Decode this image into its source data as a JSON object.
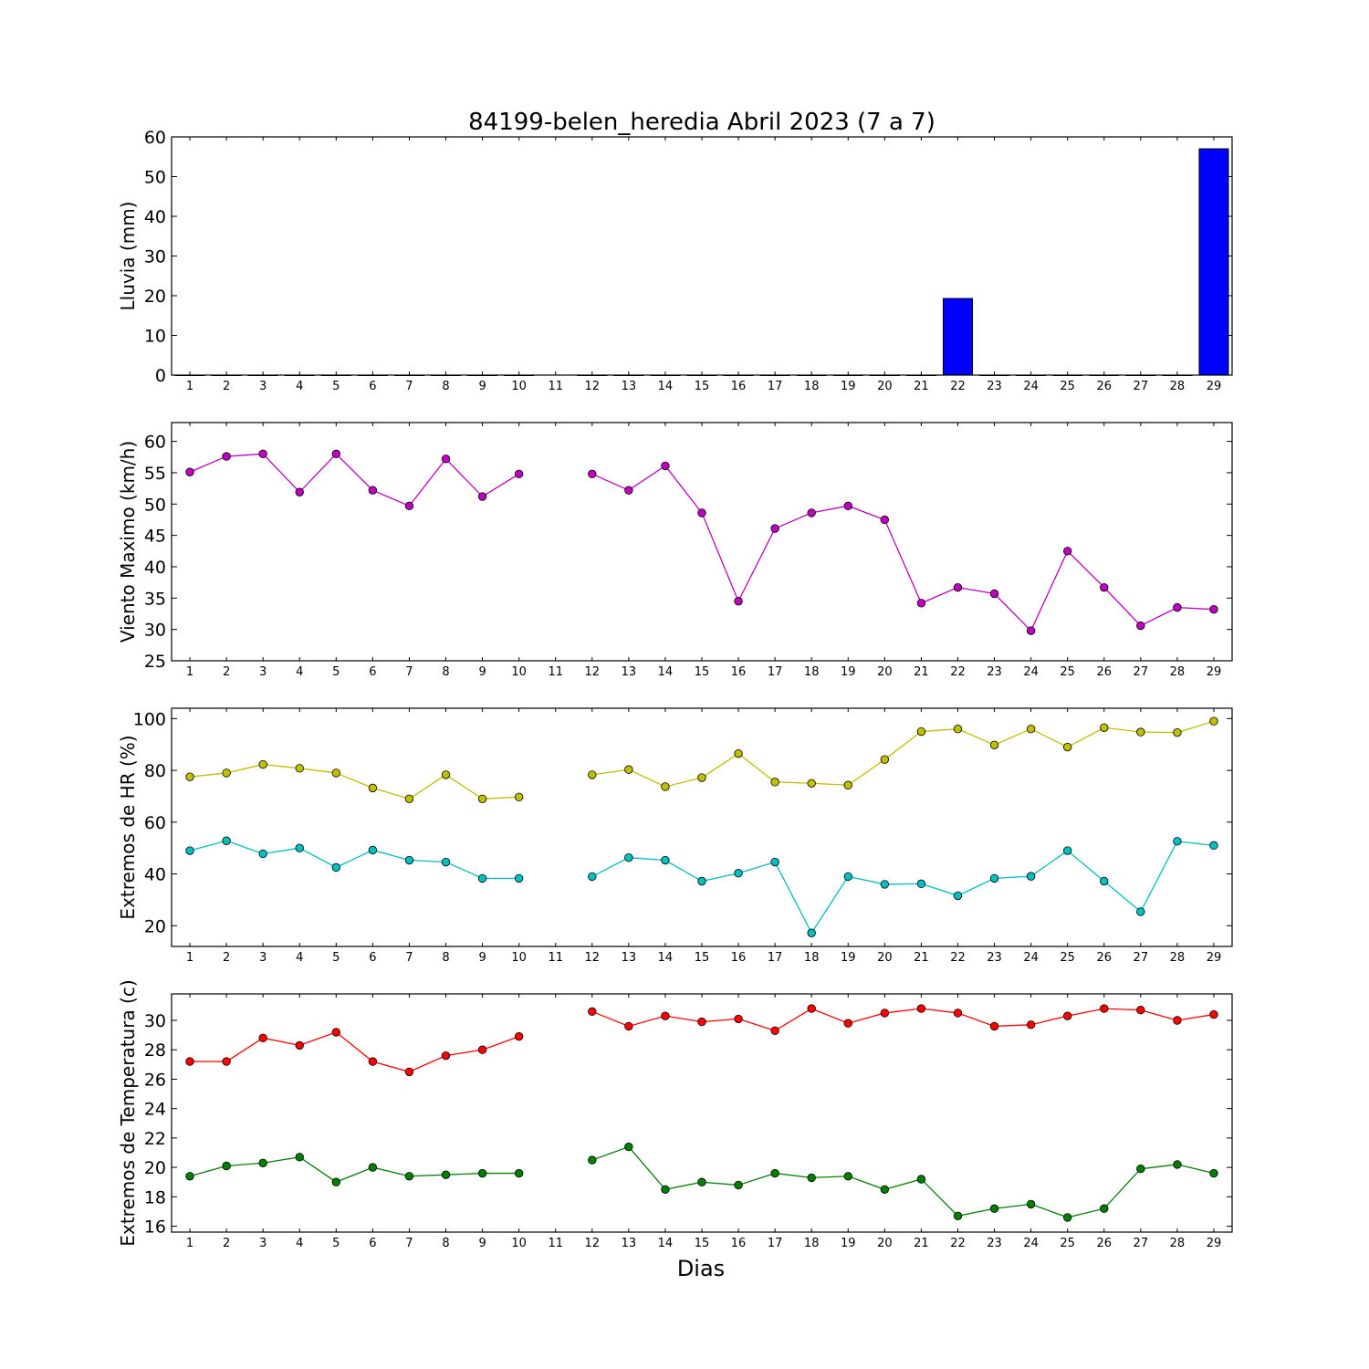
{
  "title": "84199-belen_heredia Abril 2023  (7 a 7)",
  "xlabel": "Dias",
  "chart_data": [
    {
      "type": "bar",
      "ylabel": "Lluvia (mm)",
      "ylim": [
        0,
        60
      ],
      "yticks": [
        0,
        10,
        20,
        30,
        40,
        50,
        60
      ],
      "x": [
        1,
        2,
        3,
        4,
        5,
        6,
        7,
        8,
        9,
        10,
        11,
        12,
        13,
        14,
        15,
        16,
        17,
        18,
        19,
        20,
        21,
        22,
        23,
        24,
        25,
        26,
        27,
        28,
        29
      ],
      "series": [
        {
          "color": "#0000ff",
          "values": [
            0,
            0,
            0,
            0,
            0,
            0,
            0,
            0,
            0,
            0,
            null,
            0,
            0,
            0,
            0,
            0,
            0,
            0,
            0,
            0,
            0,
            19.3,
            0,
            0,
            0,
            0,
            0,
            0,
            57.0
          ]
        }
      ]
    },
    {
      "type": "line",
      "ylabel": "Viento Maximo (km/h)",
      "ylim": [
        25,
        63
      ],
      "yticks": [
        25,
        30,
        35,
        40,
        45,
        50,
        55,
        60
      ],
      "x": [
        1,
        2,
        3,
        4,
        5,
        6,
        7,
        8,
        9,
        10,
        11,
        12,
        13,
        14,
        15,
        16,
        17,
        18,
        19,
        20,
        21,
        22,
        23,
        24,
        25,
        26,
        27,
        28,
        29
      ],
      "series": [
        {
          "color": "#bf00bf",
          "values": [
            55.1,
            57.6,
            58.0,
            51.9,
            58.0,
            52.2,
            49.7,
            57.2,
            51.2,
            54.8,
            null,
            54.8,
            52.2,
            56.1,
            48.6,
            34.5,
            46.1,
            48.6,
            49.7,
            47.5,
            34.2,
            36.7,
            35.7,
            29.8,
            42.5,
            36.7,
            30.6,
            33.5,
            33.2
          ]
        }
      ]
    },
    {
      "type": "line",
      "ylabel": "Extremos de HR (%)",
      "ylim": [
        12,
        104
      ],
      "yticks": [
        20,
        40,
        60,
        80,
        100
      ],
      "x": [
        1,
        2,
        3,
        4,
        5,
        6,
        7,
        8,
        9,
        10,
        11,
        12,
        13,
        14,
        15,
        16,
        17,
        18,
        19,
        20,
        21,
        22,
        23,
        24,
        25,
        26,
        27,
        28,
        29
      ],
      "series": [
        {
          "color": "#bfbf00",
          "values": [
            77.5,
            79.0,
            82.3,
            80.8,
            79.0,
            73.2,
            69.0,
            78.3,
            69.0,
            69.7,
            null,
            78.3,
            80.3,
            73.7,
            77.2,
            86.5,
            75.5,
            75.0,
            74.3,
            84.2,
            95.0,
            96.0,
            89.8,
            96.0,
            89.0,
            96.5,
            94.8,
            94.6,
            99.0
          ]
        },
        {
          "color": "#00bfbf",
          "values": [
            49.0,
            52.8,
            47.8,
            50.0,
            42.5,
            49.2,
            45.3,
            44.6,
            38.3,
            38.3,
            null,
            39.0,
            46.3,
            45.3,
            37.2,
            40.3,
            44.6,
            17.2,
            39.0,
            36.0,
            36.2,
            31.6,
            38.3,
            39.1,
            49.0,
            37.2,
            25.4,
            52.6,
            51.0
          ]
        }
      ]
    },
    {
      "type": "line",
      "ylabel": "Extremos de Temperatura (c)",
      "ylim": [
        15.6,
        31.8
      ],
      "yticks": [
        16,
        18,
        20,
        22,
        24,
        26,
        28,
        30
      ],
      "x": [
        1,
        2,
        3,
        4,
        5,
        6,
        7,
        8,
        9,
        10,
        11,
        12,
        13,
        14,
        15,
        16,
        17,
        18,
        19,
        20,
        21,
        22,
        23,
        24,
        25,
        26,
        27,
        28,
        29
      ],
      "series": [
        {
          "color": "#ff0000",
          "values": [
            27.2,
            27.2,
            28.8,
            28.3,
            29.2,
            27.2,
            26.5,
            27.6,
            28.0,
            28.9,
            null,
            30.6,
            29.6,
            30.3,
            29.9,
            30.1,
            29.3,
            30.8,
            29.8,
            30.5,
            30.8,
            30.5,
            29.6,
            29.7,
            30.3,
            30.8,
            30.7,
            30.0,
            30.4
          ]
        },
        {
          "color": "#007f00",
          "values": [
            19.4,
            20.1,
            20.3,
            20.7,
            19.0,
            20.0,
            19.4,
            19.5,
            19.6,
            19.6,
            null,
            20.5,
            21.4,
            18.5,
            19.0,
            18.8,
            19.6,
            19.3,
            19.4,
            18.5,
            19.2,
            16.7,
            17.2,
            17.5,
            16.6,
            17.2,
            19.9,
            20.2,
            19.6
          ]
        }
      ]
    }
  ]
}
